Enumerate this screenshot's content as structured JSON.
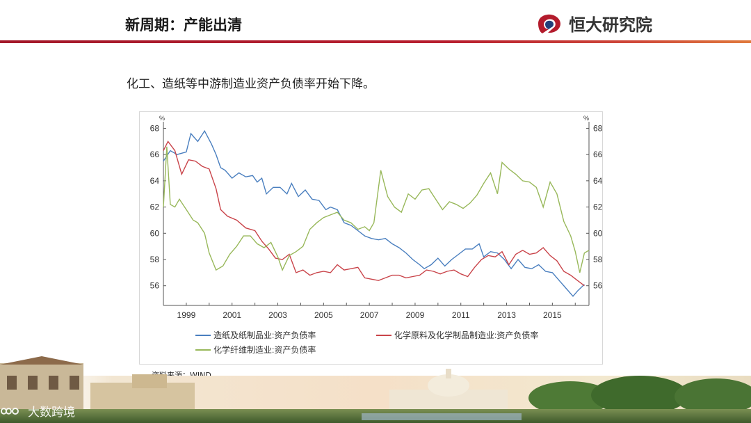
{
  "header": {
    "title": "新周期：产能出清",
    "logo_text": "恒大研究院",
    "accent": "#b31b2c"
  },
  "intro_text": "化工、造纸等中游制造业资产负债率开始下降。",
  "source_text": "资料来源：WIND",
  "watermark_text": "大数跨境",
  "chart_data": {
    "type": "line",
    "title": "",
    "ylabel_left": "%",
    "ylabel_right": "%",
    "xlim": [
      1998.0,
      2016.6
    ],
    "ylim": [
      54.5,
      68.5
    ],
    "yticks": [
      56,
      58,
      60,
      62,
      64,
      66,
      68
    ],
    "xticks": [
      1999,
      2001,
      2003,
      2005,
      2007,
      2009,
      2011,
      2013,
      2015
    ],
    "grid": false,
    "legend_position": "bottom",
    "series": [
      {
        "name": "造纸及纸制品业:资产负债率",
        "color": "#4a7fbf",
        "points": [
          [
            1998.0,
            65.5
          ],
          [
            1998.3,
            66.3
          ],
          [
            1998.6,
            66.0
          ],
          [
            1999.0,
            66.2
          ],
          [
            1999.2,
            67.6
          ],
          [
            1999.5,
            67.0
          ],
          [
            1999.8,
            67.8
          ],
          [
            2000.1,
            66.8
          ],
          [
            2000.3,
            66.0
          ],
          [
            2000.5,
            65.0
          ],
          [
            2000.7,
            64.8
          ],
          [
            2001.0,
            64.2
          ],
          [
            2001.3,
            64.6
          ],
          [
            2001.6,
            64.3
          ],
          [
            2001.9,
            64.4
          ],
          [
            2002.1,
            63.9
          ],
          [
            2002.3,
            64.2
          ],
          [
            2002.5,
            63.0
          ],
          [
            2002.8,
            63.5
          ],
          [
            2003.1,
            63.5
          ],
          [
            2003.4,
            63.0
          ],
          [
            2003.6,
            63.8
          ],
          [
            2003.9,
            62.8
          ],
          [
            2004.2,
            63.3
          ],
          [
            2004.5,
            62.6
          ],
          [
            2004.8,
            62.5
          ],
          [
            2005.1,
            61.8
          ],
          [
            2005.3,
            62.0
          ],
          [
            2005.6,
            61.8
          ],
          [
            2005.9,
            60.8
          ],
          [
            2006.2,
            60.6
          ],
          [
            2006.5,
            60.2
          ],
          [
            2006.8,
            59.8
          ],
          [
            2007.1,
            59.6
          ],
          [
            2007.4,
            59.5
          ],
          [
            2007.7,
            59.6
          ],
          [
            2008.0,
            59.2
          ],
          [
            2008.3,
            58.9
          ],
          [
            2008.6,
            58.5
          ],
          [
            2008.9,
            58.0
          ],
          [
            2009.2,
            57.6
          ],
          [
            2009.4,
            57.3
          ],
          [
            2009.7,
            57.6
          ],
          [
            2010.0,
            58.1
          ],
          [
            2010.3,
            57.5
          ],
          [
            2010.6,
            58.0
          ],
          [
            2010.9,
            58.4
          ],
          [
            2011.2,
            58.8
          ],
          [
            2011.5,
            58.8
          ],
          [
            2011.8,
            59.2
          ],
          [
            2012.0,
            58.2
          ],
          [
            2012.3,
            58.6
          ],
          [
            2012.6,
            58.5
          ],
          [
            2012.9,
            58.0
          ],
          [
            2013.2,
            57.3
          ],
          [
            2013.5,
            58.0
          ],
          [
            2013.8,
            57.4
          ],
          [
            2014.1,
            57.3
          ],
          [
            2014.4,
            57.6
          ],
          [
            2014.7,
            57.1
          ],
          [
            2015.0,
            57.0
          ],
          [
            2015.3,
            56.4
          ],
          [
            2015.6,
            55.8
          ],
          [
            2015.9,
            55.2
          ],
          [
            2016.1,
            55.6
          ],
          [
            2016.4,
            56.1
          ]
        ]
      },
      {
        "name": "化学原料及化学制品制造业:资产负债率",
        "color": "#c9444a",
        "points": [
          [
            1998.0,
            66.3
          ],
          [
            1998.2,
            67.0
          ],
          [
            1998.5,
            66.3
          ],
          [
            1998.8,
            64.5
          ],
          [
            1999.1,
            65.6
          ],
          [
            1999.4,
            65.5
          ],
          [
            1999.7,
            65.1
          ],
          [
            2000.0,
            64.9
          ],
          [
            2000.3,
            63.4
          ],
          [
            2000.5,
            61.8
          ],
          [
            2000.8,
            61.3
          ],
          [
            2001.2,
            61.0
          ],
          [
            2001.6,
            60.4
          ],
          [
            2002.0,
            60.2
          ],
          [
            2002.3,
            59.4
          ],
          [
            2002.6,
            58.8
          ],
          [
            2002.9,
            58.1
          ],
          [
            2003.2,
            58.0
          ],
          [
            2003.5,
            58.4
          ],
          [
            2003.8,
            57.0
          ],
          [
            2004.1,
            57.2
          ],
          [
            2004.4,
            56.8
          ],
          [
            2004.7,
            57.0
          ],
          [
            2005.0,
            57.1
          ],
          [
            2005.3,
            57.0
          ],
          [
            2005.6,
            57.6
          ],
          [
            2005.9,
            57.2
          ],
          [
            2006.2,
            57.3
          ],
          [
            2006.5,
            57.4
          ],
          [
            2006.8,
            56.6
          ],
          [
            2007.1,
            56.5
          ],
          [
            2007.4,
            56.4
          ],
          [
            2007.7,
            56.6
          ],
          [
            2008.0,
            56.8
          ],
          [
            2008.3,
            56.8
          ],
          [
            2008.6,
            56.6
          ],
          [
            2008.9,
            56.7
          ],
          [
            2009.2,
            56.8
          ],
          [
            2009.5,
            57.2
          ],
          [
            2009.8,
            57.1
          ],
          [
            2010.1,
            56.9
          ],
          [
            2010.4,
            57.1
          ],
          [
            2010.7,
            57.2
          ],
          [
            2011.0,
            56.9
          ],
          [
            2011.3,
            56.7
          ],
          [
            2011.6,
            57.4
          ],
          [
            2011.9,
            58.0
          ],
          [
            2012.2,
            58.3
          ],
          [
            2012.5,
            58.2
          ],
          [
            2012.8,
            58.6
          ],
          [
            2013.1,
            57.6
          ],
          [
            2013.4,
            58.4
          ],
          [
            2013.7,
            58.7
          ],
          [
            2014.0,
            58.4
          ],
          [
            2014.3,
            58.5
          ],
          [
            2014.6,
            58.9
          ],
          [
            2014.9,
            58.3
          ],
          [
            2015.2,
            57.9
          ],
          [
            2015.5,
            57.1
          ],
          [
            2015.8,
            56.8
          ],
          [
            2016.1,
            56.4
          ],
          [
            2016.4,
            56.0
          ]
        ]
      },
      {
        "name": "化学纤维制造业:资产负债率",
        "color": "#98b85a",
        "points": [
          [
            1998.0,
            62.0
          ],
          [
            1998.15,
            66.6
          ],
          [
            1998.3,
            62.2
          ],
          [
            1998.5,
            62.0
          ],
          [
            1998.7,
            62.6
          ],
          [
            1999.0,
            61.8
          ],
          [
            1999.3,
            61.0
          ],
          [
            1999.5,
            60.8
          ],
          [
            1999.8,
            60.0
          ],
          [
            2000.0,
            58.5
          ],
          [
            2000.3,
            57.2
          ],
          [
            2000.6,
            57.5
          ],
          [
            2000.9,
            58.4
          ],
          [
            2001.2,
            59.0
          ],
          [
            2001.5,
            59.8
          ],
          [
            2001.8,
            59.8
          ],
          [
            2002.1,
            59.2
          ],
          [
            2002.4,
            58.9
          ],
          [
            2002.7,
            59.3
          ],
          [
            2003.0,
            58.2
          ],
          [
            2003.2,
            57.2
          ],
          [
            2003.5,
            58.3
          ],
          [
            2003.8,
            58.6
          ],
          [
            2004.1,
            59.0
          ],
          [
            2004.4,
            60.3
          ],
          [
            2004.7,
            60.8
          ],
          [
            2005.0,
            61.2
          ],
          [
            2005.3,
            61.4
          ],
          [
            2005.6,
            61.6
          ],
          [
            2005.9,
            61.0
          ],
          [
            2006.2,
            60.8
          ],
          [
            2006.5,
            60.3
          ],
          [
            2006.8,
            60.5
          ],
          [
            2007.0,
            60.2
          ],
          [
            2007.2,
            60.8
          ],
          [
            2007.5,
            64.8
          ],
          [
            2007.8,
            62.8
          ],
          [
            2008.1,
            62.0
          ],
          [
            2008.4,
            61.6
          ],
          [
            2008.7,
            63.0
          ],
          [
            2009.0,
            62.6
          ],
          [
            2009.3,
            63.3
          ],
          [
            2009.6,
            63.4
          ],
          [
            2009.9,
            62.6
          ],
          [
            2010.2,
            61.8
          ],
          [
            2010.5,
            62.4
          ],
          [
            2010.8,
            62.2
          ],
          [
            2011.1,
            61.9
          ],
          [
            2011.4,
            62.3
          ],
          [
            2011.7,
            62.9
          ],
          [
            2012.0,
            63.8
          ],
          [
            2012.3,
            64.6
          ],
          [
            2012.6,
            63.0
          ],
          [
            2012.8,
            65.4
          ],
          [
            2013.1,
            64.9
          ],
          [
            2013.4,
            64.5
          ],
          [
            2013.7,
            64.0
          ],
          [
            2014.0,
            63.9
          ],
          [
            2014.3,
            63.5
          ],
          [
            2014.6,
            62.0
          ],
          [
            2014.9,
            63.9
          ],
          [
            2015.2,
            63.0
          ],
          [
            2015.5,
            60.9
          ],
          [
            2015.8,
            59.8
          ],
          [
            2016.0,
            58.6
          ],
          [
            2016.2,
            57.0
          ],
          [
            2016.4,
            58.5
          ],
          [
            2016.6,
            58.7
          ]
        ]
      }
    ]
  }
}
